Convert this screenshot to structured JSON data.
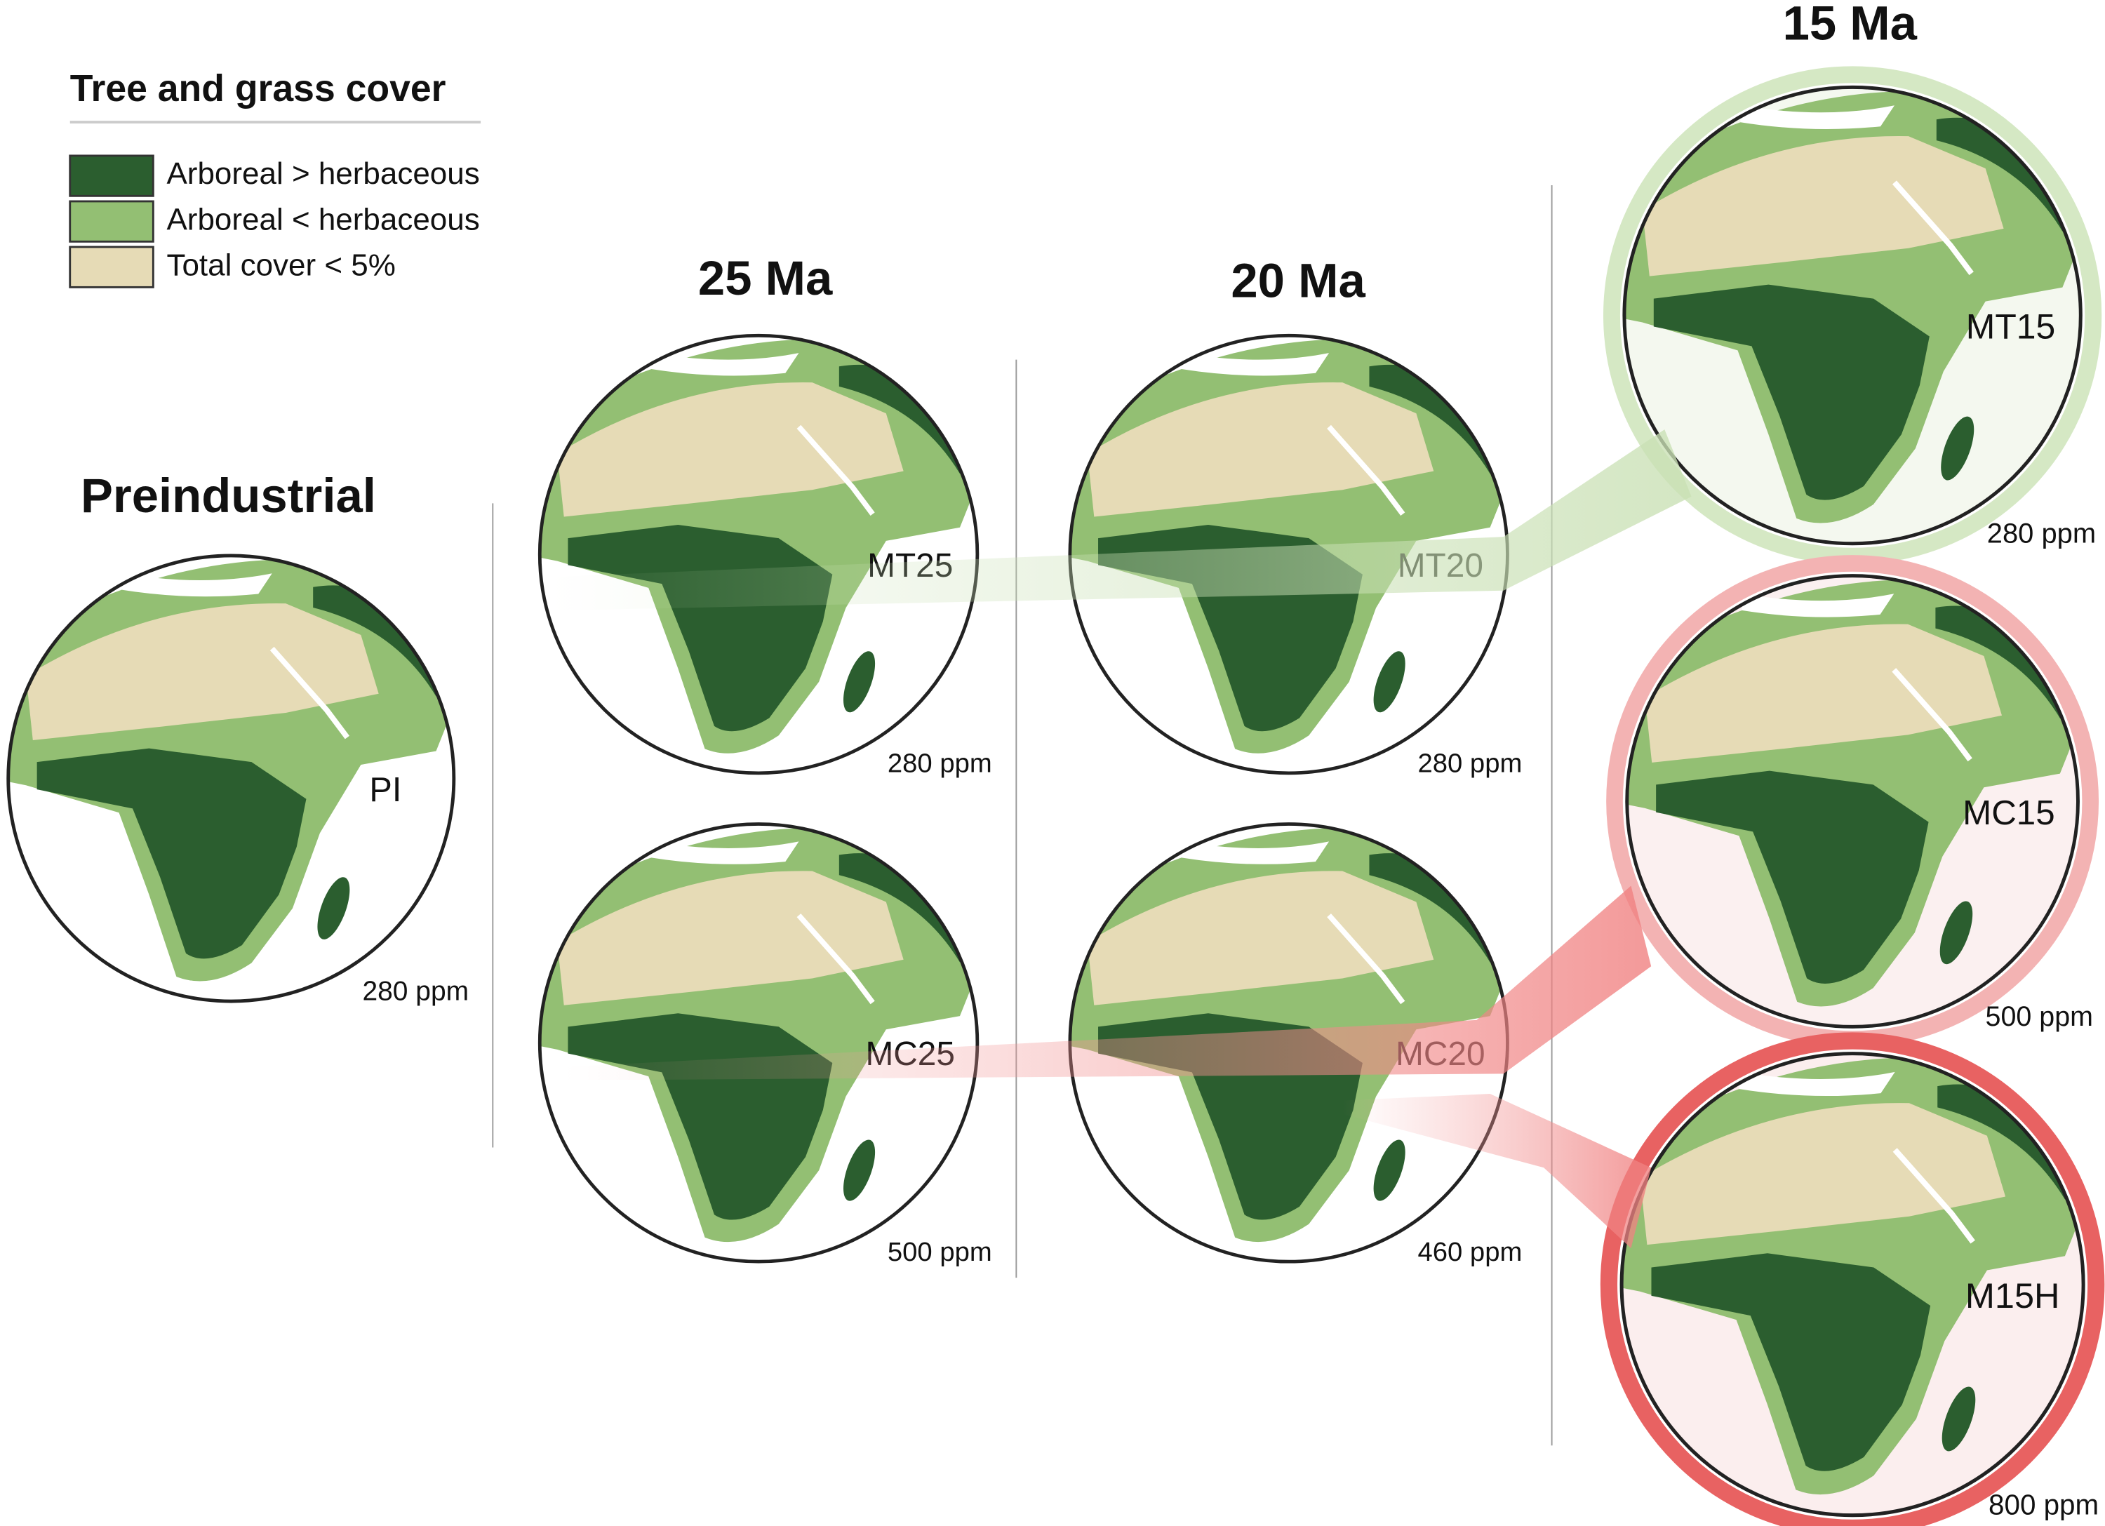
{
  "legend": {
    "title": "Tree and grass cover",
    "items": [
      {
        "label": "Arboreal > herbaceous",
        "color": "#2b5e2f"
      },
      {
        "label": "Arboreal < herbaceous",
        "color": "#93bf73"
      },
      {
        "label": "Total cover < 5%",
        "color": "#e6dbb6"
      }
    ]
  },
  "columns": [
    "Preindustrial",
    "25 Ma",
    "20 Ma",
    "15 Ma"
  ],
  "globes": [
    {
      "label": "PI",
      "co2": "280 ppm"
    },
    {
      "label": "MT25",
      "co2": "280 ppm"
    },
    {
      "label": "MC25",
      "co2": "500 ppm"
    },
    {
      "label": "MT20",
      "co2": "280 ppm"
    },
    {
      "label": "MC20",
      "co2": "460 ppm"
    },
    {
      "label": "MT15",
      "co2": "280 ppm"
    },
    {
      "label": "MC15",
      "co2": "500 ppm"
    },
    {
      "label": "M15H",
      "co2": "800 ppm"
    }
  ]
}
